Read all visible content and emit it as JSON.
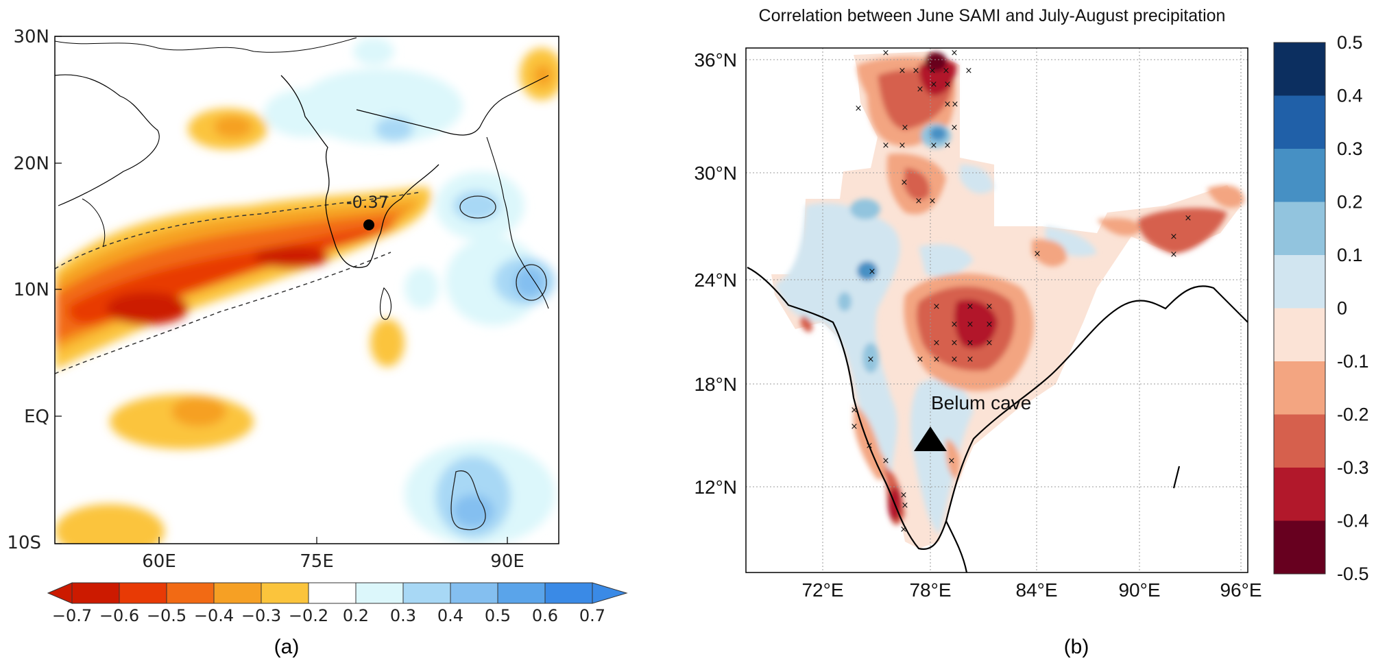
{
  "panel_a": {
    "label": "(a)",
    "lat_labels": [
      "30N",
      "20N",
      "10N",
      "EQ",
      "10S"
    ],
    "lon_labels": [
      "60E",
      "75E",
      "90E"
    ],
    "contour_label": "-0.37",
    "colorbar": {
      "labels": [
        "−0.7",
        "−0.6",
        "−0.5",
        "−0.4",
        "−0.3",
        "−0.2",
        "0.2",
        "0.3",
        "0.4",
        "0.5",
        "0.6",
        "0.7"
      ],
      "colors": [
        "#cc1a00",
        "#e83a05",
        "#f26a14",
        "#f6a024",
        "#fbc43c",
        "#ffffff",
        "#dcf7fb",
        "#a8d8f5",
        "#84bff0",
        "#5aa4ea",
        "#3a8ae6",
        "#3a8ae6"
      ]
    }
  },
  "panel_b": {
    "label": "(b)",
    "title": "Correlation between June SAMI and July-August precipitation",
    "lat_labels": [
      "36°N",
      "30°N",
      "24°N",
      "18°N",
      "12°N"
    ],
    "lon_labels": [
      "72°E",
      "78°E",
      "84°E",
      "90°E",
      "96°E"
    ],
    "site_label": "Belum cave",
    "colorbar": {
      "labels": [
        "0.5",
        "0.4",
        "0.3",
        "0.2",
        "0.1",
        "0",
        "-0.1",
        "-0.2",
        "-0.3",
        "-0.4",
        "-0.5"
      ],
      "colors": [
        "#0c2f60",
        "#2060a8",
        "#4690c4",
        "#92c4de",
        "#d1e5f0",
        "#fbe3d6",
        "#f3a581",
        "#d6604d",
        "#b2182b",
        "#67001f"
      ]
    }
  }
}
